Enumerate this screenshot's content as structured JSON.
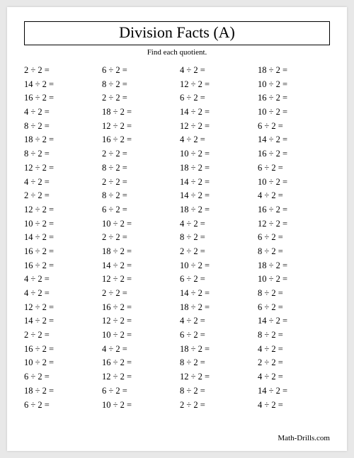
{
  "title": "Division Facts (A)",
  "subtitle": "Find each quotient.",
  "footer": "Math-Drills.com",
  "divisor": 2,
  "columns": [
    [
      2,
      14,
      16,
      4,
      8,
      18,
      8,
      12,
      4,
      2,
      12,
      10,
      14,
      16,
      16,
      4,
      4,
      12,
      14,
      2,
      16,
      10,
      6,
      18,
      6
    ],
    [
      6,
      8,
      2,
      18,
      12,
      16,
      2,
      8,
      2,
      8,
      6,
      10,
      2,
      18,
      14,
      12,
      2,
      16,
      12,
      10,
      4,
      16,
      12,
      6,
      10
    ],
    [
      4,
      12,
      6,
      14,
      12,
      4,
      10,
      18,
      14,
      14,
      18,
      4,
      8,
      2,
      10,
      6,
      14,
      18,
      4,
      6,
      18,
      8,
      12,
      8,
      2
    ],
    [
      18,
      10,
      16,
      10,
      6,
      14,
      16,
      6,
      10,
      4,
      16,
      12,
      6,
      8,
      18,
      10,
      8,
      6,
      14,
      8,
      4,
      2,
      4,
      14,
      4
    ]
  ],
  "style": {
    "background": "#e8e8e8",
    "page_background": "#ffffff",
    "border_color": "#000000",
    "text_color": "#000000",
    "title_fontsize": 22,
    "subtitle_fontsize": 11,
    "problem_fontsize": 12.5,
    "footer_fontsize": 11
  }
}
